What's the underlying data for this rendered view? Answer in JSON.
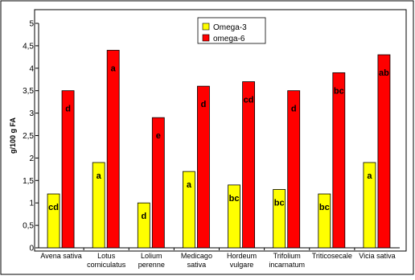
{
  "chart_data": {
    "type": "bar",
    "ylabel": "g/100 g FA",
    "xlabel": "",
    "ylim": [
      0,
      5
    ],
    "yticks": [
      "0",
      "0,5",
      "1",
      "1,5",
      "2",
      "2,5",
      "3",
      "3,5",
      "4",
      "4,5",
      "5"
    ],
    "grid": false,
    "legend": "top-center",
    "categories": [
      [
        "Avena sativa"
      ],
      [
        "Lotus",
        "corniculatus"
      ],
      [
        "Lolium",
        "perenne"
      ],
      [
        "Medicago",
        "sativa"
      ],
      [
        "Hordeum",
        "vulgare"
      ],
      [
        "Trifolium",
        "incarnatum"
      ],
      [
        "Triticosecale"
      ],
      [
        "Vicia sativa"
      ]
    ],
    "series": [
      {
        "name": "Omega-3",
        "color": "#ffff00",
        "values": [
          1.2,
          1.9,
          1.0,
          1.7,
          1.4,
          1.3,
          1.2,
          1.9
        ],
        "labels": [
          "cd",
          "a",
          "d",
          "a",
          "bc",
          "bc",
          "bc",
          "a"
        ]
      },
      {
        "name": "omega-6",
        "color": "#ff0000",
        "values": [
          3.5,
          4.4,
          2.9,
          3.6,
          3.7,
          3.5,
          3.9,
          4.3
        ],
        "labels": [
          "d",
          "a",
          "e",
          "d",
          "cd",
          "d",
          "bc",
          "ab"
        ]
      }
    ]
  }
}
